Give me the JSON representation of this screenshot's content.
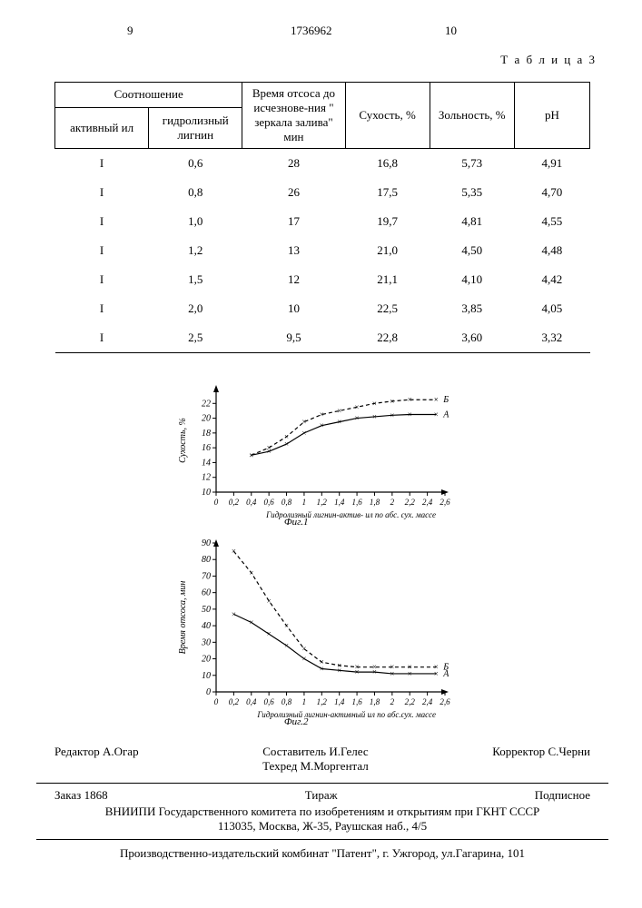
{
  "header": {
    "page_left": "9",
    "doc_number": "1736962",
    "page_right": "10",
    "table_label": "Т а б л и ц а 3"
  },
  "table": {
    "columns": {
      "group": "Соотношение",
      "c1": "активный ил",
      "c2": "гидролизный лигнин",
      "c3": "Время отсоса до исчезнове-ния \" зеркала залива\" мин",
      "c4": "Сухость, %",
      "c5": "Зольность, %",
      "c6": "pH"
    },
    "rows": [
      [
        "I",
        "0,6",
        "28",
        "16,8",
        "5,73",
        "4,91"
      ],
      [
        "I",
        "0,8",
        "26",
        "17,5",
        "5,35",
        "4,70"
      ],
      [
        "I",
        "1,0",
        "17",
        "19,7",
        "4,81",
        "4,55"
      ],
      [
        "I",
        "1,2",
        "13",
        "21,0",
        "4,50",
        "4,48"
      ],
      [
        "I",
        "1,5",
        "12",
        "21,1",
        "4,10",
        "4,42"
      ],
      [
        "I",
        "2,0",
        "10",
        "22,5",
        "3,85",
        "4,05"
      ],
      [
        "I",
        "2,5",
        "9,5",
        "22,8",
        "3,60",
        "3,32"
      ]
    ]
  },
  "chart1": {
    "type": "line",
    "caption": "Фиг.1",
    "x": [
      0.4,
      0.6,
      0.8,
      1.0,
      1.2,
      1.4,
      1.6,
      1.8,
      2.0,
      2.2,
      2.5
    ],
    "seriesA": {
      "label": "А",
      "y": [
        15,
        15.5,
        16.5,
        18,
        19,
        19.5,
        20,
        20.2,
        20.4,
        20.5,
        20.5
      ],
      "color": "#000000",
      "dash": "0"
    },
    "seriesB": {
      "label": "Б",
      "y": [
        15,
        16,
        17.5,
        19.5,
        20.5,
        21,
        21.5,
        22,
        22.3,
        22.5,
        22.5
      ],
      "color": "#000000",
      "dash": "4 3"
    },
    "marker": "x",
    "xlim": [
      0,
      2.6
    ],
    "ylim": [
      10,
      24
    ],
    "xticks": [
      0,
      0.2,
      0.4,
      0.6,
      0.8,
      1.0,
      1.2,
      1.4,
      1.6,
      1.8,
      2.0,
      2.2,
      2.4,
      2.6
    ],
    "yticks": [
      10,
      12,
      14,
      16,
      18,
      20,
      22
    ],
    "xlabel": "Гидролизный лигнин-актив- ил по абс. сух. массе",
    "ylabel": "Сухость, %",
    "axis_color": "#000000",
    "background": "#ffffff",
    "fontsize": 10
  },
  "chart2": {
    "type": "line",
    "caption": "Фиг.2",
    "x": [
      0.2,
      0.4,
      0.6,
      0.8,
      1.0,
      1.2,
      1.4,
      1.6,
      1.8,
      2.0,
      2.2,
      2.5
    ],
    "seriesA": {
      "label": "А",
      "y": [
        47,
        42,
        35,
        28,
        20,
        14,
        13,
        12,
        12,
        11,
        11,
        11
      ],
      "color": "#000000",
      "dash": "0"
    },
    "seriesB": {
      "label": "Б",
      "y": [
        85,
        72,
        55,
        40,
        26,
        18,
        16,
        15,
        15,
        15,
        15,
        15
      ],
      "color": "#000000",
      "dash": "4 3"
    },
    "marker": "x",
    "xlim": [
      0,
      2.6
    ],
    "ylim": [
      0,
      90
    ],
    "xticks": [
      0,
      0.2,
      0.4,
      0.6,
      0.8,
      1.0,
      1.2,
      1.4,
      1.6,
      1.8,
      2.0,
      2.2,
      2.4,
      2.6
    ],
    "yticks": [
      0,
      10,
      20,
      30,
      40,
      50,
      60,
      70,
      80,
      90
    ],
    "xlabel": "Гидролизный лигнин-активный ил по абс.сух. массе",
    "ylabel": "Время отсоса, мин",
    "axis_color": "#000000",
    "background": "#ffffff",
    "fontsize": 10
  },
  "credits": {
    "editor_label": "Редактор",
    "editor": "А.Огар",
    "compiler_label": "Составитель",
    "compiler": "И.Гелес",
    "techred_label": "Техред",
    "techred": "М.Моргентал",
    "corrector_label": "Корректор",
    "corrector": "С.Черни",
    "order_label": "Заказ",
    "order": "1868",
    "tirazh": "Тираж",
    "subscribe": "Подписное",
    "org1": "ВНИИПИ Государственного комитета по изобретениям и открытиям при ГКНТ СССР",
    "org2": "113035, Москва, Ж-35, Раушская наб., 4/5",
    "printer": "Производственно-издательский комбинат \"Патент\", г. Ужгород, ул.Гагарина, 101"
  }
}
